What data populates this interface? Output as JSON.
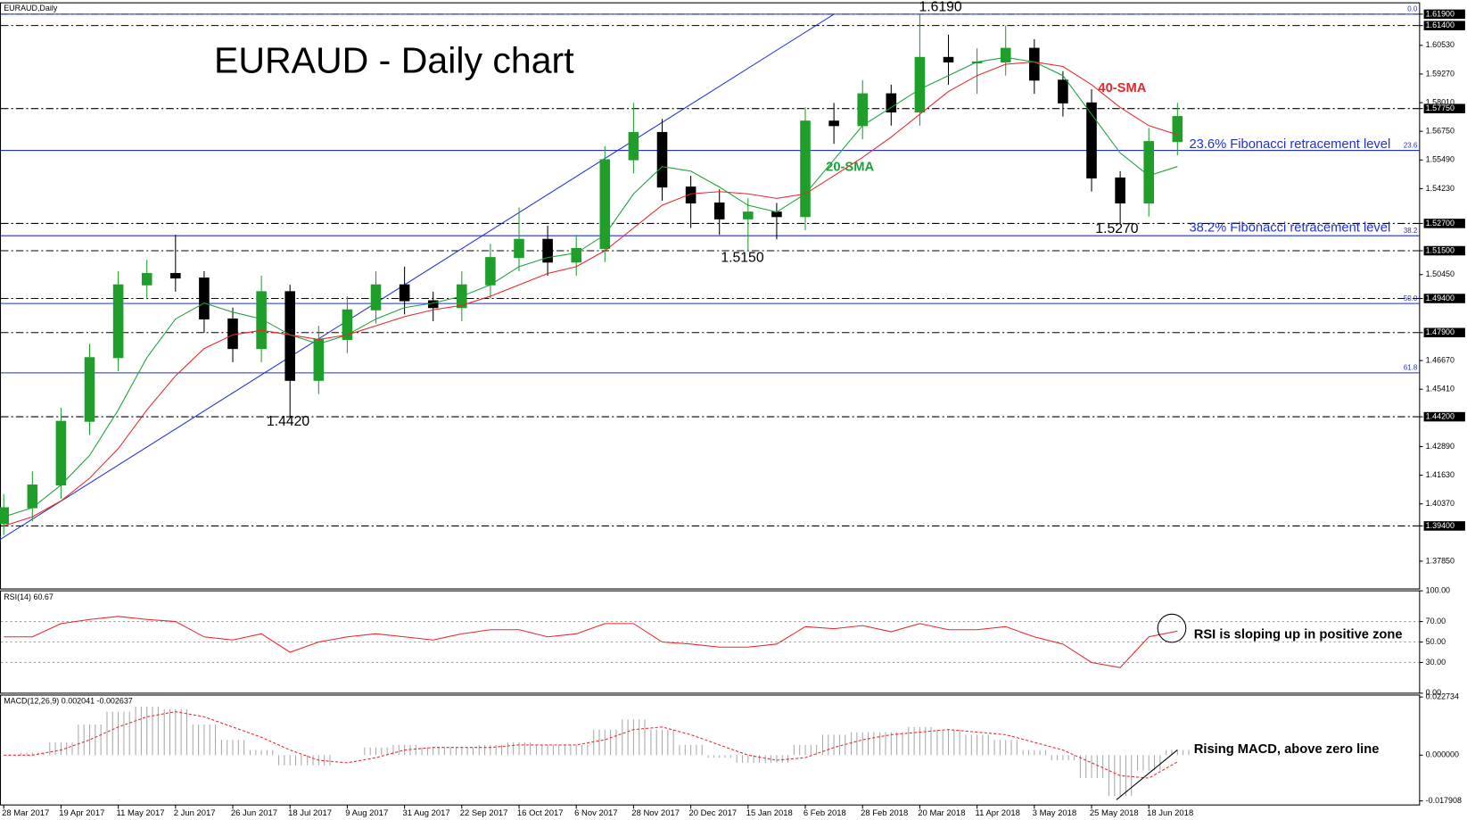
{
  "chart_data": [
    {
      "type": "candlestick",
      "title": "EURAUD - Daily chart",
      "label": "EURAUD,Daily",
      "categories": [
        "28 Mar 2017",
        null,
        "19 Apr 2017",
        null,
        "11 May 2017",
        null,
        "2 Jun 2017",
        null,
        "26 Jun 2017",
        null,
        "18 Jul 2017",
        null,
        "9 Aug 2017",
        null,
        "31 Aug 2017",
        null,
        "22 Sep 2017",
        null,
        "16 Oct 2017",
        null,
        "6 Nov 2017",
        null,
        "28 Nov 2017",
        null,
        "20 Dec 2017",
        null,
        "15 Jan 2018",
        null,
        "6 Feb 2018",
        null,
        "28 Feb 2018",
        null,
        "20 Mar 2018",
        null,
        "11 Apr 2018",
        null,
        "3 May 2018",
        null,
        "25 May 2018",
        null,
        "18 Jun 2018",
        null
      ],
      "open": [
        1.395,
        1.402,
        1.412,
        1.44,
        1.468,
        1.5,
        1.505,
        1.503,
        1.485,
        1.472,
        1.497,
        1.458,
        1.476,
        1.489,
        1.5,
        1.493,
        1.49,
        1.5,
        1.512,
        1.52,
        1.51,
        1.516,
        1.555,
        1.567,
        1.543,
        1.536,
        1.529,
        1.532,
        1.53,
        1.572,
        1.57,
        1.584,
        1.576,
        1.6,
        1.598,
        1.598,
        1.604,
        1.59,
        1.58,
        1.547,
        1.536,
        1.563
      ],
      "high": [
        1.408,
        1.418,
        1.446,
        1.474,
        1.506,
        1.511,
        1.522,
        1.506,
        1.49,
        1.504,
        1.5,
        1.482,
        1.495,
        1.506,
        1.508,
        1.497,
        1.506,
        1.518,
        1.534,
        1.526,
        1.522,
        1.561,
        1.58,
        1.573,
        1.548,
        1.542,
        1.538,
        1.536,
        1.578,
        1.58,
        1.59,
        1.588,
        1.619,
        1.61,
        1.604,
        1.614,
        1.608,
        1.594,
        1.586,
        1.55,
        1.569,
        1.58
      ],
      "low": [
        1.39,
        1.396,
        1.406,
        1.434,
        1.462,
        1.494,
        1.497,
        1.479,
        1.466,
        1.466,
        1.442,
        1.452,
        1.47,
        1.483,
        1.487,
        1.484,
        1.484,
        1.494,
        1.506,
        1.504,
        1.504,
        1.51,
        1.549,
        1.537,
        1.525,
        1.522,
        1.515,
        1.52,
        1.524,
        1.562,
        1.564,
        1.57,
        1.57,
        1.588,
        1.584,
        1.592,
        1.584,
        1.574,
        1.541,
        1.527,
        1.53,
        1.557
      ],
      "close": [
        1.402,
        1.412,
        1.44,
        1.468,
        1.5,
        1.505,
        1.503,
        1.485,
        1.472,
        1.497,
        1.458,
        1.476,
        1.489,
        1.5,
        1.493,
        1.49,
        1.5,
        1.512,
        1.52,
        1.51,
        1.516,
        1.555,
        1.567,
        1.543,
        1.536,
        1.529,
        1.532,
        1.53,
        1.572,
        1.57,
        1.584,
        1.576,
        1.6,
        1.598,
        1.598,
        1.604,
        1.59,
        1.58,
        1.547,
        1.536,
        1.563,
        1.574
      ],
      "up_color": "#1f9e2a",
      "down_color": "#000000",
      "series": [
        {
          "name": "20-SMA",
          "color": "#1fa03a",
          "values": [
            1.398,
            1.402,
            1.412,
            1.425,
            1.445,
            1.468,
            1.485,
            1.492,
            1.488,
            1.485,
            1.478,
            1.474,
            1.478,
            1.485,
            1.49,
            1.492,
            1.495,
            1.5,
            1.508,
            1.512,
            1.514,
            1.522,
            1.54,
            1.552,
            1.55,
            1.543,
            1.535,
            1.532,
            1.54,
            1.555,
            1.57,
            1.578,
            1.586,
            1.592,
            1.598,
            1.6,
            1.598,
            1.592,
            1.575,
            1.558,
            1.548,
            1.552
          ]
        },
        {
          "name": "40-SMA",
          "color": "#e8262b",
          "values": [
            1.394,
            1.398,
            1.405,
            1.415,
            1.428,
            1.445,
            1.46,
            1.472,
            1.478,
            1.48,
            1.478,
            1.476,
            1.478,
            1.482,
            1.486,
            1.489,
            1.491,
            1.495,
            1.5,
            1.505,
            1.508,
            1.515,
            1.525,
            1.535,
            1.54,
            1.541,
            1.54,
            1.538,
            1.54,
            1.548,
            1.556,
            1.565,
            1.575,
            1.585,
            1.592,
            1.597,
            1.598,
            1.596,
            1.588,
            1.578,
            1.57,
            1.566
          ]
        }
      ],
      "trendline": {
        "color": "#1f2fd6",
        "index": [
          0,
          29
        ],
        "values": [
          1.388,
          1.619
        ]
      },
      "levels": [
        1.619,
        1.614,
        1.5775,
        1.527,
        1.515,
        1.494,
        1.479,
        1.442,
        1.394
      ],
      "fibonacci": [
        {
          "label": "0.0",
          "value": 1.619
        },
        {
          "label": "23.6",
          "value": 1.5591
        },
        {
          "label": "38.2",
          "value": 1.5216
        },
        {
          "label": "50.0",
          "value": 1.4918
        },
        {
          "label": "61.8",
          "value": 1.4613
        }
      ],
      "annotations": [
        "1.6190",
        "1.4420",
        "1.5150",
        "1.5270",
        "23.6% Fibonacci retracement level",
        "38.2% Fibonacci retracement level"
      ],
      "ylim": [
        1.3663,
        1.624
      ],
      "yticks": [
        {
          "value": 1.619,
          "label": "1.61900"
        },
        {
          "value": 1.614,
          "label": "1.61400"
        },
        {
          "value": 1.6053,
          "label": "1.60530"
        },
        {
          "value": 1.5927,
          "label": "1.59270"
        },
        {
          "value": 1.5801,
          "label": "1.58010"
        },
        {
          "value": 1.5775,
          "label": "1.57750"
        },
        {
          "value": 1.5675,
          "label": "1.56750"
        },
        {
          "value": 1.5549,
          "label": "1.55490"
        },
        {
          "value": 1.5423,
          "label": "1.54230"
        },
        {
          "value": 1.527,
          "label": "1.52700"
        },
        {
          "value": 1.515,
          "label": "1.51500"
        },
        {
          "value": 1.5045,
          "label": "1.50450"
        },
        {
          "value": 1.494,
          "label": "1.49400"
        },
        {
          "value": 1.479,
          "label": "1.47900"
        },
        {
          "value": 1.4667,
          "label": "1.46670"
        },
        {
          "value": 1.4541,
          "label": "1.45410"
        },
        {
          "value": 1.442,
          "label": "1.44200"
        },
        {
          "value": 1.4289,
          "label": "1.42890"
        },
        {
          "value": 1.4163,
          "label": "1.41630"
        },
        {
          "value": 1.4037,
          "label": "1.40370"
        },
        {
          "value": 1.394,
          "label": "1.39400"
        },
        {
          "value": 1.3785,
          "label": "1.37850"
        }
      ]
    },
    {
      "type": "line",
      "label": "RSI(14) 60.67",
      "color": "#e8262b",
      "values": [
        55,
        55,
        68,
        72,
        75,
        72,
        70,
        55,
        52,
        58,
        40,
        50,
        55,
        58,
        55,
        52,
        58,
        62,
        62,
        55,
        58,
        68,
        68,
        50,
        48,
        45,
        45,
        48,
        65,
        63,
        66,
        60,
        68,
        62,
        62,
        65,
        55,
        48,
        30,
        25,
        55,
        60.67
      ],
      "annotation": "RSI is sloping up in positive zone",
      "ylim": [
        0,
        100
      ],
      "yticks": [
        {
          "value": 100,
          "label": "100.00"
        },
        {
          "value": 70,
          "label": "70.00"
        },
        {
          "value": 50,
          "label": "50.00"
        },
        {
          "value": 30,
          "label": "30.00"
        },
        {
          "value": 0,
          "label": "0.00"
        }
      ]
    },
    {
      "type": "bar",
      "label": "MACD(12,26,9) 0.002041 -0.002637",
      "series": [
        {
          "color": "#a8a8a8",
          "values": [
            0.0,
            0.001,
            0.005,
            0.012,
            0.017,
            0.019,
            0.018,
            0.012,
            0.006,
            0.002,
            -0.004,
            -0.004,
            0.0,
            0.003,
            0.004,
            0.003,
            0.003,
            0.004,
            0.005,
            0.004,
            0.004,
            0.01,
            0.014,
            0.01,
            0.004,
            -0.001,
            -0.003,
            -0.003,
            0.004,
            0.008,
            0.009,
            0.009,
            0.011,
            0.01,
            0.008,
            0.006,
            0.002,
            -0.002,
            -0.009,
            -0.016,
            -0.006,
            0.002041
          ]
        },
        {
          "color": "#e8262b",
          "values": [
            0.0,
            0.0,
            0.002,
            0.006,
            0.011,
            0.015,
            0.017,
            0.015,
            0.011,
            0.007,
            0.002,
            -0.002,
            -0.003,
            -0.001,
            0.002,
            0.003,
            0.003,
            0.003,
            0.004,
            0.004,
            0.004,
            0.006,
            0.01,
            0.011,
            0.008,
            0.004,
            0.0,
            -0.002,
            -0.001,
            0.003,
            0.006,
            0.008,
            0.009,
            0.01,
            0.009,
            0.008,
            0.005,
            0.002,
            -0.003,
            -0.008,
            -0.009,
            -0.002637
          ]
        }
      ],
      "annotation": "Rising MACD, above zero line",
      "ylim": [
        -0.0195,
        0.0235
      ],
      "yticks": [
        {
          "value": 0.022734,
          "label": "0.022734"
        },
        {
          "value": 0,
          "label": "0.000000"
        },
        {
          "value": -0.017908,
          "label": "-0.017908"
        }
      ]
    }
  ]
}
